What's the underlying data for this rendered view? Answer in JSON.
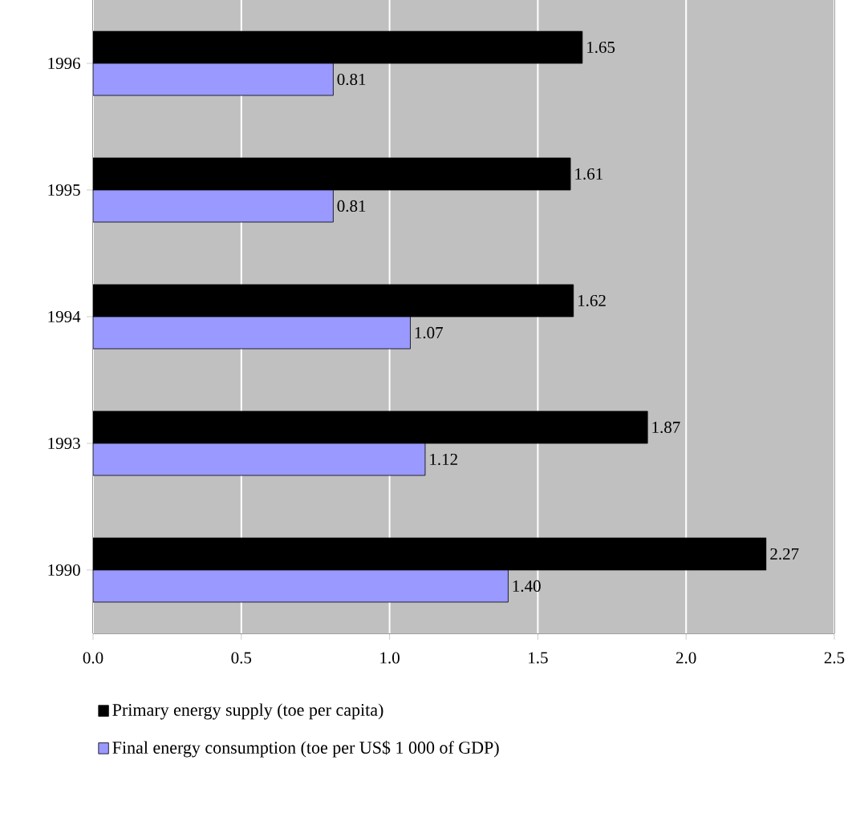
{
  "chart_data": {
    "type": "bar",
    "orientation": "horizontal",
    "categories": [
      "1996",
      "1995",
      "1994",
      "1993",
      "1990"
    ],
    "series": [
      {
        "name": "Primary energy supply  (toe per capita)",
        "color": "#000000",
        "values": [
          1.65,
          1.61,
          1.62,
          1.87,
          2.27
        ],
        "value_labels": [
          "1.65",
          "1.61",
          "1.62",
          "1.87",
          "2.27"
        ]
      },
      {
        "name": "Final energy consumption  (toe per US$ 1 000 of GDP)",
        "color": "#9999ff",
        "values": [
          0.81,
          0.81,
          1.07,
          1.12,
          1.4
        ],
        "value_labels": [
          "0.81",
          "0.81",
          "1.07",
          "1.12",
          "1.40"
        ]
      }
    ],
    "xlim": [
      0,
      2.5
    ],
    "xticks": [
      {
        "value": 0,
        "label": "0.0"
      },
      {
        "value": 0.5,
        "label": "0.5"
      },
      {
        "value": 1,
        "label": "1.0"
      },
      {
        "value": 1.5,
        "label": "1.5"
      },
      {
        "value": 2,
        "label": "2.0"
      },
      {
        "value": 2.5,
        "label": "2.5"
      }
    ],
    "grid": "x",
    "legend": "bottom"
  }
}
